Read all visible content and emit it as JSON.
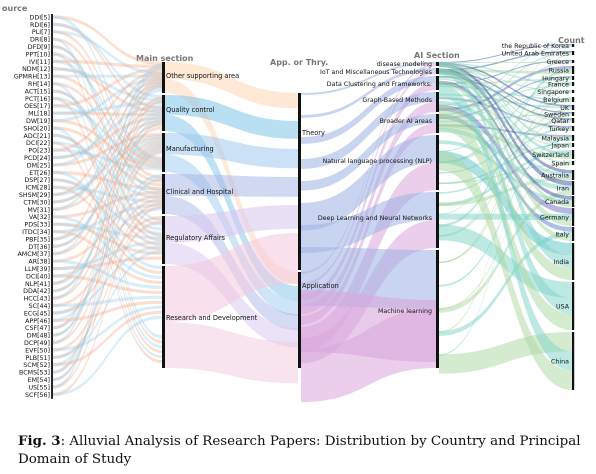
{
  "figure": {
    "caption_label": "Fig. 3",
    "caption_text": ": Alluvial Analysis of Research Papers: Distribution by Country and Principal Domain of Study"
  },
  "axes": {
    "source": "ource",
    "main": "Main section",
    "app": "App. or Thry.",
    "ai": "AI Section",
    "count": "Count"
  },
  "sources": [
    "DDI[5]",
    "RDI[6]",
    "PLI[7]",
    "DRI[8]",
    "DFD[9]",
    "PPT[10]",
    "IVI[11]",
    "NDM[12]",
    "GPMRH[13]",
    "RH[14]",
    "ACT[15]",
    "PCT[16]",
    "OES[17]",
    "ML[18]",
    "DW[19]",
    "SHO[20]",
    "ADC[21]",
    "DCI[22]",
    "PO[23]",
    "PCD[24]",
    "DM[25]",
    "ET[26]",
    "DSP[27]",
    "ICM[28]",
    "SHSM[29]",
    "CTM[30]",
    "MV[31]",
    "VA[32]",
    "PDS[33]",
    "ITDC[34]",
    "PBF[35]",
    "DT[36]",
    "AMCM[37]",
    "AR[38]",
    "LLM[39]",
    "DCI[40]",
    "NLP[41]",
    "DDA[42]",
    "HCC[43]",
    "SC[44]",
    "ECG[45]",
    "APP[46]",
    "CSF[47]",
    "DM[48]",
    "DCP[49]",
    "EVF[50]",
    "PLB[51]",
    "SCM[52]",
    "BCMS[53]",
    "EM[54]",
    "US[55]",
    "SCF[56]"
  ],
  "main_sections": [
    "Other supporting area",
    "Quality control",
    "Manufacturing",
    "Clinical and Hospital",
    "Regulatory Affairs",
    "Research and Development"
  ],
  "app_thry": [
    "Theory",
    "Application"
  ],
  "ai_sections": [
    "disease modeling",
    "IoT and Miscellaneous Technologies",
    "Data Clustering and Frameworks:",
    "Graph-Based Methods",
    "Broader AI areas",
    "Natural language processing (NLP)",
    "Deep Learning and Neural Networks",
    "Machine learning"
  ],
  "countries": [
    "the Republic of Korea",
    "United Arab Emirates",
    "Greece",
    "Russia",
    "Hungary",
    "France",
    "Singapore",
    "Belgium",
    "UK",
    "Sweden",
    "Qatar",
    "Turkey",
    "Malaysia",
    "Japan",
    "Switzerland",
    "Spain",
    "Australia",
    "Iran",
    "Canada",
    "Germany",
    "Italy",
    "India",
    "USA",
    "China"
  ],
  "colors": {
    "other": "#fdd5b4",
    "quality": "#7fc4ea",
    "manufacturing": "#9ec9ef",
    "clinical": "#aab8e8",
    "regulatory": "#d7c6ef",
    "research": "#f2c9de",
    "theory": "#9db1e3",
    "application": "#d8a6dc",
    "ai_ml": "#a9d8a0",
    "ai_dl": "#7ed3c8",
    "ai_nlp": "#5fc3c8",
    "ai_misc": "#3f53a6",
    "source_flow": "#f7a07a"
  }
}
